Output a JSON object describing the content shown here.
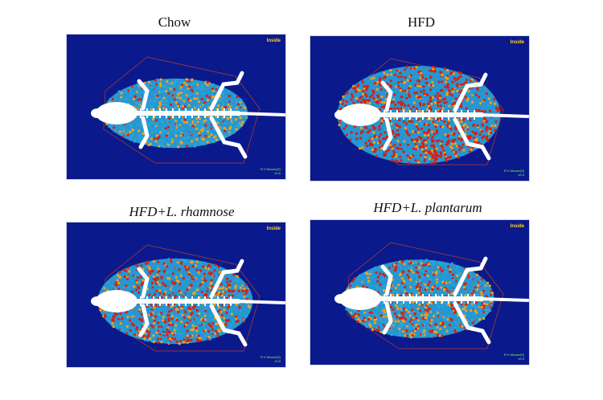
{
  "panels": [
    {
      "id": "chow",
      "title": "Chow",
      "title_italic": false,
      "label": "Inside",
      "scale_line1": "R.V Mouse(S)",
      "scale_line2": "x0.5",
      "fat": "low"
    },
    {
      "id": "hfd",
      "title": "HFD",
      "title_italic": false,
      "label": "Inside",
      "scale_line1": "R.V Mouse(S)",
      "scale_line2": "x0.5",
      "fat": "high"
    },
    {
      "id": "rhamnose",
      "title": "HFD+L. rhamnose",
      "title_italic": true,
      "label": "Inside",
      "scale_line1": "R.V Mouse(S)",
      "scale_line2": "x0.5",
      "fat": "medium"
    },
    {
      "id": "plantarum",
      "title": "HFD+L. plantarum",
      "title_italic": true,
      "label": "Inside",
      "scale_line1": "R.V Mouse(S)",
      "scale_line2": "x0.5",
      "fat": "medium-low"
    }
  ],
  "colors": {
    "background": "#0a1a8c",
    "bone": "#ffffff",
    "fat_high": "#d81e12",
    "fat_mid": "#f2a31b",
    "fat_low": "#2aa4d8",
    "outline": "#c0392b",
    "label": "#ffd21a",
    "scale": "#7dff4a"
  }
}
